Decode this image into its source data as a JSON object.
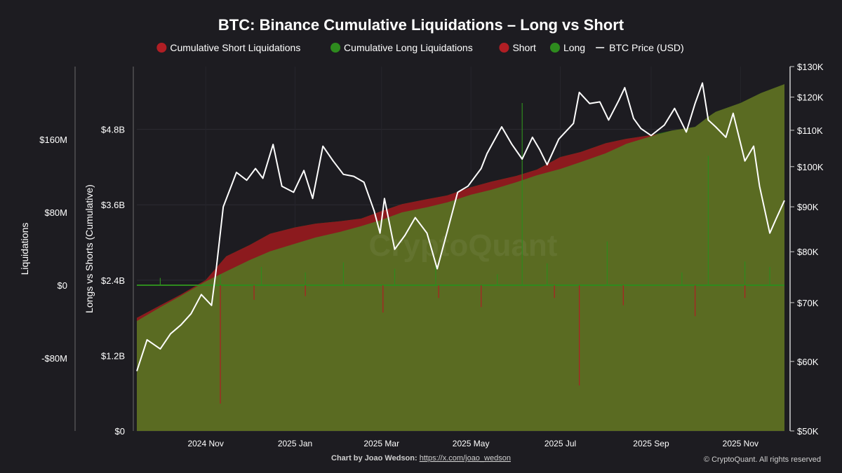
{
  "chart_data": {
    "type": "area",
    "title": "BTC: Binance Cumulative Liquidations – Long vs Short",
    "legend": [
      {
        "label": "Cumulative Short Liquidations",
        "color": "#b01e24",
        "kind": "dot"
      },
      {
        "label": "Cumulative Long Liquidations",
        "color": "#2e8b1e",
        "kind": "dot"
      },
      {
        "label": "Short",
        "color": "#b01e24",
        "kind": "dot"
      },
      {
        "label": "Long",
        "color": "#2e8b1e",
        "kind": "dot"
      },
      {
        "label": "BTC Price (USD)",
        "color": "#ffffff",
        "kind": "line"
      }
    ],
    "legend_position": "top-center",
    "axes": {
      "liquidations": {
        "label": "Liquidations",
        "ticks": [
          "$160M",
          "$80M",
          "$0",
          "-$80M"
        ],
        "tick_values": [
          160,
          80,
          0,
          -80
        ],
        "range": [
          -160,
          240
        ]
      },
      "cumulative": {
        "label": "Longs vs Shorts (Cumulative)",
        "ticks": [
          "$4.8B",
          "$3.6B",
          "$2.4B",
          "$1.2B",
          "$0"
        ],
        "tick_values": [
          4.8,
          3.6,
          2.4,
          1.2,
          0
        ],
        "range": [
          0,
          5.8
        ]
      },
      "price": {
        "label": "",
        "ticks": [
          "$130K",
          "$120K",
          "$110K",
          "$100K",
          "$90K",
          "$80K",
          "$70K",
          "$60K",
          "$50K"
        ],
        "tick_values": [
          130000,
          120000,
          110000,
          100000,
          90000,
          80000,
          70000,
          60000,
          50000
        ],
        "range": [
          50000,
          130000
        ],
        "scale": "log"
      },
      "x": {
        "ticks": [
          "2024 Nov",
          "2025 Jan",
          "2025 Mar",
          "2025 May",
          "2025 Jul",
          "2025 Sep",
          "2025 Nov"
        ],
        "tick_dates": [
          "2024-11-01",
          "2025-01-01",
          "2025-03-01",
          "2025-05-01",
          "2025-07-01",
          "2025-09-01",
          "2025-11-01"
        ],
        "range": [
          "2024-09-15",
          "2025-12-01"
        ]
      }
    },
    "grid": true,
    "series": [
      {
        "name": "Cumulative Long Liquidations",
        "axis": "cumulative",
        "color": "#5a6b22",
        "points": [
          [
            "2024-09-15",
            1.75
          ],
          [
            "2024-10-01",
            1.97
          ],
          [
            "2024-10-15",
            2.15
          ],
          [
            "2024-11-01",
            2.38
          ],
          [
            "2024-11-15",
            2.54
          ],
          [
            "2024-12-01",
            2.72
          ],
          [
            "2024-12-15",
            2.86
          ],
          [
            "2025-01-01",
            2.98
          ],
          [
            "2025-01-15",
            3.08
          ],
          [
            "2025-02-01",
            3.17
          ],
          [
            "2025-02-15",
            3.26
          ],
          [
            "2025-03-01",
            3.36
          ],
          [
            "2025-03-15",
            3.48
          ],
          [
            "2025-04-01",
            3.56
          ],
          [
            "2025-04-15",
            3.64
          ],
          [
            "2025-05-01",
            3.76
          ],
          [
            "2025-05-15",
            3.84
          ],
          [
            "2025-06-01",
            3.96
          ],
          [
            "2025-06-15",
            4.07
          ],
          [
            "2025-07-01",
            4.17
          ],
          [
            "2025-07-15",
            4.28
          ],
          [
            "2025-08-01",
            4.42
          ],
          [
            "2025-08-15",
            4.57
          ],
          [
            "2025-09-01",
            4.69
          ],
          [
            "2025-09-15",
            4.78
          ],
          [
            "2025-10-01",
            4.84
          ],
          [
            "2025-10-10",
            5.0
          ],
          [
            "2025-10-15",
            5.08
          ],
          [
            "2025-11-01",
            5.22
          ],
          [
            "2025-11-15",
            5.38
          ],
          [
            "2025-12-01",
            5.52
          ]
        ]
      },
      {
        "name": "Cumulative Short Liquidations",
        "axis": "cumulative",
        "color": "#8c1a1e",
        "points": [
          [
            "2024-09-15",
            1.8
          ],
          [
            "2024-10-01",
            2.0
          ],
          [
            "2024-10-15",
            2.17
          ],
          [
            "2024-11-01",
            2.4
          ],
          [
            "2024-11-15",
            2.78
          ],
          [
            "2024-12-01",
            2.96
          ],
          [
            "2024-12-15",
            3.14
          ],
          [
            "2025-01-01",
            3.24
          ],
          [
            "2025-01-15",
            3.3
          ],
          [
            "2025-02-01",
            3.34
          ],
          [
            "2025-02-15",
            3.38
          ],
          [
            "2025-03-01",
            3.5
          ],
          [
            "2025-03-15",
            3.61
          ],
          [
            "2025-04-01",
            3.69
          ],
          [
            "2025-04-15",
            3.75
          ],
          [
            "2025-05-01",
            3.88
          ],
          [
            "2025-05-15",
            3.97
          ],
          [
            "2025-06-01",
            4.06
          ],
          [
            "2025-06-15",
            4.16
          ],
          [
            "2025-07-01",
            4.36
          ],
          [
            "2025-07-15",
            4.44
          ],
          [
            "2025-08-01",
            4.58
          ],
          [
            "2025-08-15",
            4.65
          ],
          [
            "2025-09-01",
            4.71
          ],
          [
            "2025-09-15",
            4.75
          ],
          [
            "2025-10-01",
            4.8
          ],
          [
            "2025-10-10",
            4.84
          ],
          [
            "2025-10-15",
            4.88
          ],
          [
            "2025-11-01",
            4.98
          ],
          [
            "2025-11-15",
            5.1
          ],
          [
            "2025-12-01",
            5.2
          ]
        ]
      },
      {
        "name": "BTC Price (USD)",
        "axis": "price",
        "color": "#ffffff",
        "points": [
          [
            "2024-09-15",
            58500
          ],
          [
            "2024-09-22",
            63500
          ],
          [
            "2024-10-01",
            62000
          ],
          [
            "2024-10-08",
            64500
          ],
          [
            "2024-10-15",
            66000
          ],
          [
            "2024-10-22",
            68000
          ],
          [
            "2024-10-29",
            71500
          ],
          [
            "2024-11-05",
            69500
          ],
          [
            "2024-11-08",
            76000
          ],
          [
            "2024-11-13",
            90000
          ],
          [
            "2024-11-22",
            98500
          ],
          [
            "2024-11-29",
            96500
          ],
          [
            "2024-12-05",
            99500
          ],
          [
            "2024-12-10",
            97000
          ],
          [
            "2024-12-17",
            106000
          ],
          [
            "2024-12-23",
            95000
          ],
          [
            "2024-12-31",
            93500
          ],
          [
            "2025-01-07",
            99000
          ],
          [
            "2025-01-13",
            92000
          ],
          [
            "2025-01-20",
            105500
          ],
          [
            "2025-01-27",
            101500
          ],
          [
            "2025-02-03",
            98000
          ],
          [
            "2025-02-10",
            97500
          ],
          [
            "2025-02-17",
            96000
          ],
          [
            "2025-02-24",
            89000
          ],
          [
            "2025-02-28",
            84000
          ],
          [
            "2025-03-03",
            92000
          ],
          [
            "2025-03-10",
            80500
          ],
          [
            "2025-03-17",
            83500
          ],
          [
            "2025-03-24",
            87500
          ],
          [
            "2025-04-01",
            84000
          ],
          [
            "2025-04-08",
            76500
          ],
          [
            "2025-04-15",
            84500
          ],
          [
            "2025-04-22",
            93500
          ],
          [
            "2025-04-29",
            95000
          ],
          [
            "2025-05-08",
            99500
          ],
          [
            "2025-05-12",
            103500
          ],
          [
            "2025-05-22",
            111000
          ],
          [
            "2025-05-29",
            106000
          ],
          [
            "2025-06-05",
            102000
          ],
          [
            "2025-06-12",
            108000
          ],
          [
            "2025-06-17",
            104500
          ],
          [
            "2025-06-22",
            100500
          ],
          [
            "2025-06-30",
            107500
          ],
          [
            "2025-07-10",
            112000
          ],
          [
            "2025-07-14",
            121500
          ],
          [
            "2025-07-21",
            118000
          ],
          [
            "2025-07-28",
            118500
          ],
          [
            "2025-08-03",
            113000
          ],
          [
            "2025-08-10",
            119000
          ],
          [
            "2025-08-14",
            123000
          ],
          [
            "2025-08-20",
            113500
          ],
          [
            "2025-08-25",
            110500
          ],
          [
            "2025-09-01",
            108500
          ],
          [
            "2025-09-10",
            111500
          ],
          [
            "2025-09-17",
            116500
          ],
          [
            "2025-09-25",
            109500
          ],
          [
            "2025-10-01",
            118000
          ],
          [
            "2025-10-06",
            124500
          ],
          [
            "2025-10-10",
            113000
          ],
          [
            "2025-10-15",
            111000
          ],
          [
            "2025-10-22",
            108000
          ],
          [
            "2025-10-27",
            115000
          ],
          [
            "2025-11-04",
            101500
          ],
          [
            "2025-11-10",
            105500
          ],
          [
            "2025-11-14",
            95000
          ],
          [
            "2025-11-21",
            84000
          ],
          [
            "2025-11-25",
            87000
          ],
          [
            "2025-12-01",
            91500
          ]
        ]
      },
      {
        "name": "Long",
        "axis": "liquidations",
        "color": "#2e8b1e",
        "spikes": [
          [
            "2024-10-01",
            8
          ],
          [
            "2024-11-11",
            12
          ],
          [
            "2024-12-09",
            20
          ],
          [
            "2025-01-08",
            14
          ],
          [
            "2025-02-03",
            25
          ],
          [
            "2025-03-10",
            18
          ],
          [
            "2025-04-07",
            22
          ],
          [
            "2025-05-19",
            12
          ],
          [
            "2025-06-05",
            200
          ],
          [
            "2025-06-22",
            24
          ],
          [
            "2025-08-02",
            48
          ],
          [
            "2025-09-22",
            14
          ],
          [
            "2025-10-10",
            142
          ],
          [
            "2025-11-04",
            26
          ],
          [
            "2025-11-21",
            20
          ]
        ]
      },
      {
        "name": "Short",
        "axis": "liquidations",
        "color": "#b01e24",
        "spikes": [
          [
            "2024-11-11",
            -130
          ],
          [
            "2024-12-04",
            -16
          ],
          [
            "2025-01-08",
            -12
          ],
          [
            "2025-03-02",
            -30
          ],
          [
            "2025-04-09",
            -14
          ],
          [
            "2025-05-08",
            -24
          ],
          [
            "2025-06-27",
            -14
          ],
          [
            "2025-07-14",
            -110
          ],
          [
            "2025-08-13",
            -22
          ],
          [
            "2025-10-01",
            -34
          ],
          [
            "2025-11-04",
            -14
          ]
        ]
      }
    ],
    "watermark": "CryptoQuant"
  },
  "footer": {
    "credit_prefix": "Chart by Joao Wedson: ",
    "credit_link": "https://x.com/joao_wedson",
    "copyright": "© CryptoQuant. All rights reserved"
  }
}
